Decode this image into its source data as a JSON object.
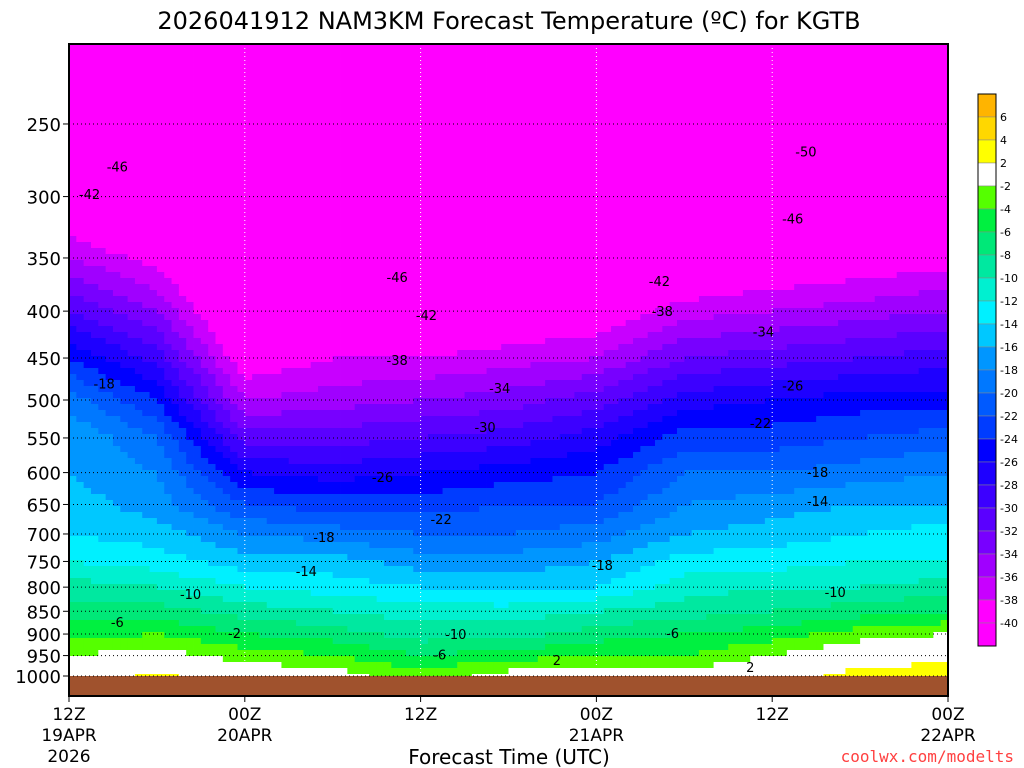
{
  "chart_data": {
    "type": "heatmap",
    "title": "2026041912 NAM3KM Forecast Temperature (ºC) for KGTB",
    "xlabel": "Forecast Time (UTC)",
    "ylabel": "",
    "credit": "coolwx.com/modelts",
    "x_hours": [
      0,
      6,
      12,
      18,
      24,
      30,
      36,
      42,
      48,
      54,
      60
    ],
    "x_range": [
      0,
      60
    ],
    "x_ticks": [
      {
        "hour": 0,
        "lines": [
          "12Z",
          "19APR",
          "2026"
        ]
      },
      {
        "hour": 12,
        "lines": [
          "00Z",
          "20APR"
        ]
      },
      {
        "hour": 24,
        "lines": [
          "12Z"
        ]
      },
      {
        "hour": 36,
        "lines": [
          "00Z",
          "21APR"
        ]
      },
      {
        "hour": 48,
        "lines": [
          "12Z"
        ]
      },
      {
        "hour": 60,
        "lines": [
          "00Z",
          "22APR"
        ]
      }
    ],
    "y_ticks": [
      "250",
      "300",
      "350",
      "400",
      "450",
      "500",
      "550",
      "600",
      "650",
      "700",
      "750",
      "800",
      "850",
      "900",
      "950",
      "1000"
    ],
    "y_range_hpa": [
      205,
      1050
    ],
    "y_scale": "log",
    "ground_level_hpa": 1000,
    "pressure_levels": [
      200,
      250,
      300,
      350,
      400,
      450,
      500,
      550,
      600,
      650,
      700,
      750,
      800,
      850,
      900,
      950,
      1000
    ],
    "temperature_grid": [
      [
        -54,
        -48,
        -42,
        -36,
        -30,
        -24,
        -19,
        -16,
        -16,
        -15,
        -14,
        -12,
        -9,
        -7,
        -5,
        -2,
        0
      ],
      [
        -55,
        -49,
        -44,
        -39,
        -34,
        -29,
        -24,
        -20,
        -18,
        -17,
        -15,
        -13,
        -10,
        -7,
        -4,
        -1,
        3
      ],
      [
        -54,
        -50,
        -47,
        -45,
        -43,
        -40,
        -36,
        -31,
        -26,
        -22,
        -18,
        -15,
        -12,
        -9,
        -6,
        -3,
        0
      ],
      [
        -53,
        -50,
        -47,
        -45,
        -42,
        -38,
        -35,
        -31,
        -27,
        -23,
        -19,
        -15,
        -13,
        -10,
        -7,
        -4,
        -1
      ],
      [
        -54,
        -51,
        -48,
        -46,
        -42,
        -38,
        -34,
        -30,
        -26,
        -23,
        -20,
        -17,
        -14,
        -11,
        -9,
        -6,
        -3
      ],
      [
        -54,
        -51,
        -48,
        -45,
        -41,
        -37,
        -33,
        -29,
        -25,
        -22,
        -20,
        -17,
        -15,
        -11,
        -9,
        -5,
        -1
      ],
      [
        -53,
        -50,
        -48,
        -44,
        -40,
        -36,
        -31,
        -27,
        -24,
        -22,
        -19,
        -16,
        -14,
        -10,
        -7,
        -4,
        0
      ],
      [
        -53,
        -50,
        -46,
        -42,
        -37,
        -32,
        -27,
        -23,
        -20,
        -18,
        -16,
        -13,
        -11,
        -9,
        -6,
        -4,
        -1
      ],
      [
        -54,
        -51,
        -46,
        -41,
        -36,
        -31,
        -26,
        -23,
        -20,
        -17,
        -15,
        -13,
        -10,
        -8,
        -5,
        -2,
        1
      ],
      [
        -53,
        -50,
        -46,
        -40,
        -35,
        -30,
        -25,
        -22,
        -19,
        -16,
        -14,
        -12,
        -10,
        -7,
        -3,
        0,
        3
      ],
      [
        -53,
        -49,
        -45,
        -39,
        -34,
        -29,
        -25,
        -21,
        -18,
        -16,
        -13,
        -12,
        -9,
        -6,
        -2,
        1,
        4
      ]
    ],
    "colorbar": {
      "labels": [
        "6",
        "4",
        "2",
        "-2",
        "-4",
        "-6",
        "-8",
        "-10",
        "-12",
        "-14",
        "-16",
        "-18",
        "-20",
        "-22",
        "-24",
        "-26",
        "-28",
        "-30",
        "-32",
        "-34",
        "-36",
        "-38",
        "-40"
      ],
      "thresholds": [
        6,
        4,
        2,
        -2,
        -4,
        -6,
        -8,
        -10,
        -12,
        -14,
        -16,
        -18,
        -20,
        -22,
        -24,
        -26,
        -28,
        -30,
        -32,
        -34,
        -36,
        -38,
        -40
      ],
      "colors": [
        "#FFB400",
        "#FFD700",
        "#FFFF00",
        "#FFFFFF",
        "#55FF00",
        "#00F040",
        "#00E878",
        "#00E8A0",
        "#00F0D0",
        "#00F0FF",
        "#00C8FF",
        "#0096FF",
        "#0078FF",
        "#005AFF",
        "#003CFF",
        "#0000FF",
        "#1E00FF",
        "#3C00FF",
        "#5A00FF",
        "#7800FF",
        "#A000FF",
        "#C800FF",
        "#FF00FF",
        "#FF00FF"
      ]
    },
    "contour_labels": [
      {
        "text": "-46",
        "hour": 3.3,
        "hpa": 278
      },
      {
        "text": "-42",
        "hour": 1.4,
        "hpa": 298
      },
      {
        "text": "-50",
        "hour": 50.3,
        "hpa": 268
      },
      {
        "text": "-46",
        "hour": 49.4,
        "hpa": 317
      },
      {
        "text": "-46",
        "hour": 22.4,
        "hpa": 367
      },
      {
        "text": "-42",
        "hour": 40.3,
        "hpa": 371
      },
      {
        "text": "-42",
        "hour": 24.4,
        "hpa": 404
      },
      {
        "text": "-38",
        "hour": 40.5,
        "hpa": 400
      },
      {
        "text": "-34",
        "hour": 47.4,
        "hpa": 421
      },
      {
        "text": "-38",
        "hour": 22.4,
        "hpa": 452
      },
      {
        "text": "-34",
        "hour": 29.4,
        "hpa": 485
      },
      {
        "text": "-26",
        "hour": 49.4,
        "hpa": 482
      },
      {
        "text": "-18",
        "hour": 2.4,
        "hpa": 480
      },
      {
        "text": "-30",
        "hour": 28.4,
        "hpa": 535
      },
      {
        "text": "-22",
        "hour": 47.2,
        "hpa": 530
      },
      {
        "text": "-26",
        "hour": 21.4,
        "hpa": 607
      },
      {
        "text": "-18",
        "hour": 51.1,
        "hpa": 599
      },
      {
        "text": "-14",
        "hour": 51.1,
        "hpa": 644
      },
      {
        "text": "-22",
        "hour": 25.4,
        "hpa": 674
      },
      {
        "text": "-18",
        "hour": 17.4,
        "hpa": 705
      },
      {
        "text": "-14",
        "hour": 16.2,
        "hpa": 768
      },
      {
        "text": "-18",
        "hour": 36.4,
        "hpa": 757
      },
      {
        "text": "-10",
        "hour": 8.3,
        "hpa": 814
      },
      {
        "text": "-10",
        "hour": 52.3,
        "hpa": 810
      },
      {
        "text": "-6",
        "hour": 3.3,
        "hpa": 873
      },
      {
        "text": "-2",
        "hour": 11.3,
        "hpa": 898
      },
      {
        "text": "-10",
        "hour": 26.4,
        "hpa": 900
      },
      {
        "text": "-6",
        "hour": 41.2,
        "hpa": 898
      },
      {
        "text": "-6",
        "hour": 25.3,
        "hpa": 948
      },
      {
        "text": "2",
        "hour": 33.3,
        "hpa": 961
      },
      {
        "text": "2",
        "hour": 46.5,
        "hpa": 978
      }
    ],
    "colors": {
      "ground": "#A0522D",
      "credit": "#FF4040"
    }
  }
}
